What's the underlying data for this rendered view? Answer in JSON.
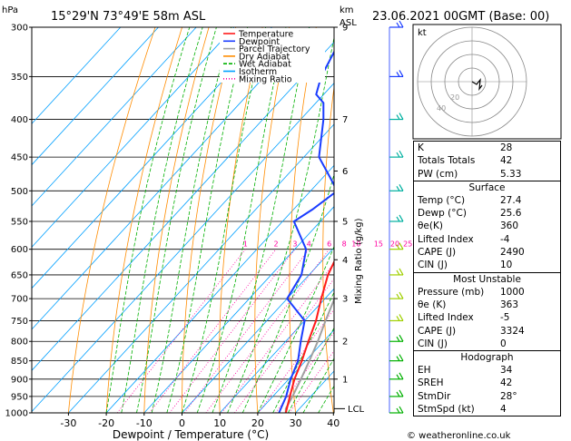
{
  "header": {
    "pressure_unit": "hPa",
    "location": "15°29'N  73°49'E  58m  ASL",
    "height_unit_top": "km",
    "height_unit_bottom": "ASL",
    "valid_time": "23.06.2021  00GMT  (Base: 00)"
  },
  "chart_data": {
    "type": "skew-t",
    "xlabel": "Dewpoint / Temperature (°C)",
    "ylabel_left": "hPa",
    "ylabel_right": "Mixing Ratio (g/kg)",
    "x_ticks": [
      -30,
      -20,
      -10,
      0,
      10,
      20,
      30,
      40
    ],
    "x_range": [
      -35,
      40
    ],
    "p_range": [
      1000,
      300
    ],
    "pressure_levels": [
      300,
      350,
      400,
      450,
      500,
      550,
      600,
      650,
      700,
      750,
      800,
      850,
      900,
      950,
      1000
    ],
    "km_labels": [
      {
        "p": 300,
        "label": "9"
      },
      {
        "p": 400,
        "label": "7"
      },
      {
        "p": 470,
        "label": "6"
      },
      {
        "p": 550,
        "label": "5"
      },
      {
        "p": 620,
        "label": "4"
      },
      {
        "p": 700,
        "label": "3"
      },
      {
        "p": 800,
        "label": "2"
      },
      {
        "p": 900,
        "label": "1"
      }
    ],
    "lcl": {
      "p": 987,
      "label": "LCL"
    },
    "mixing_ratio_labels": [
      "1",
      "2",
      "3",
      "4",
      "6",
      "8",
      "10",
      "15",
      "20",
      "25"
    ],
    "mixing_ratio_values": [
      1,
      2,
      3,
      4,
      6,
      8,
      10,
      15,
      20,
      25
    ],
    "legend": [
      "Temperature",
      "Dewpoint",
      "Parcel Trajectory",
      "Dry Adiabat",
      "Wet Adiabat",
      "Isotherm",
      "Mixing Ratio"
    ],
    "colors": {
      "temperature": "#ff1a1a",
      "dewpoint": "#1a3cff",
      "parcel": "#a0a0a0",
      "dry_adiabat": "#ff8c00",
      "wet_adiabat": "#00b000",
      "isotherm": "#00a0ff",
      "mixing_ratio": "#ff00a0",
      "wind": "#a0d000"
    },
    "series": [
      {
        "name": "Temperature",
        "points": [
          [
            1000,
            27.4
          ],
          [
            950,
            24.5
          ],
          [
            900,
            21.5
          ],
          [
            850,
            19
          ],
          [
            800,
            16
          ],
          [
            750,
            13
          ],
          [
            700,
            9
          ],
          [
            650,
            5
          ],
          [
            600,
            2
          ],
          [
            550,
            -1
          ],
          [
            500,
            -5
          ],
          [
            450,
            -10
          ],
          [
            400,
            -16
          ],
          [
            350,
            -23
          ],
          [
            300,
            -31
          ]
        ]
      },
      {
        "name": "Dewpoint",
        "points": [
          [
            1000,
            25.6
          ],
          [
            950,
            23.5
          ],
          [
            900,
            20.5
          ],
          [
            850,
            18
          ],
          [
            800,
            14
          ],
          [
            750,
            10
          ],
          [
            700,
            0
          ],
          [
            650,
            -2
          ],
          [
            600,
            -7
          ],
          [
            550,
            -17
          ],
          [
            530,
            -15
          ],
          [
            500,
            -13
          ],
          [
            480,
            -18
          ],
          [
            450,
            -26
          ],
          [
            400,
            -34
          ],
          [
            380,
            -38
          ],
          [
            370,
            -42
          ],
          [
            350,
            -45
          ],
          [
            320,
            -48
          ],
          [
            300,
            -51
          ]
        ]
      },
      {
        "name": "Parcel Trajectory",
        "points": [
          [
            1000,
            27.4
          ],
          [
            987,
            26.4
          ],
          [
            950,
            25.2
          ],
          [
            900,
            23.2
          ],
          [
            850,
            21
          ],
          [
            800,
            18.5
          ],
          [
            750,
            15.5
          ],
          [
            700,
            12.5
          ],
          [
            650,
            9
          ],
          [
            600,
            5.5
          ],
          [
            550,
            1.5
          ],
          [
            500,
            -3
          ],
          [
            450,
            -8
          ],
          [
            400,
            -14
          ],
          [
            350,
            -21
          ],
          [
            300,
            -29
          ]
        ]
      }
    ],
    "hodograph": {
      "label": "kt",
      "ring_labels": [
        "20",
        "40"
      ]
    }
  },
  "indices": {
    "rows": [
      {
        "label": "K",
        "value": "28"
      },
      {
        "label": "Totals Totals",
        "value": "42"
      },
      {
        "label": "PW (cm)",
        "value": "5.33"
      }
    ]
  },
  "surface": {
    "title": "Surface",
    "rows": [
      {
        "label": "Temp (°C)",
        "value": "27.4"
      },
      {
        "label": "Dewp (°C)",
        "value": "25.6"
      },
      {
        "label": "θe(K)",
        "value": "360"
      },
      {
        "label": "Lifted Index",
        "value": "-4"
      },
      {
        "label": "CAPE (J)",
        "value": "2490"
      },
      {
        "label": "CIN (J)",
        "value": "10"
      }
    ]
  },
  "most_unstable": {
    "title": "Most Unstable",
    "rows": [
      {
        "label": "Pressure (mb)",
        "value": "1000"
      },
      {
        "label": "θe (K)",
        "value": "363"
      },
      {
        "label": "Lifted Index",
        "value": "-5"
      },
      {
        "label": "CAPE (J)",
        "value": "3324"
      },
      {
        "label": "CIN (J)",
        "value": "0"
      }
    ]
  },
  "hodograph_box": {
    "title": "Hodograph",
    "rows": [
      {
        "label": "EH",
        "value": "34"
      },
      {
        "label": "SREH",
        "value": "42"
      },
      {
        "label": "StmDir",
        "value": "28°"
      },
      {
        "label": "StmSpd (kt)",
        "value": "4"
      }
    ]
  },
  "footer": {
    "credit": "© weatheronline.co.uk"
  }
}
